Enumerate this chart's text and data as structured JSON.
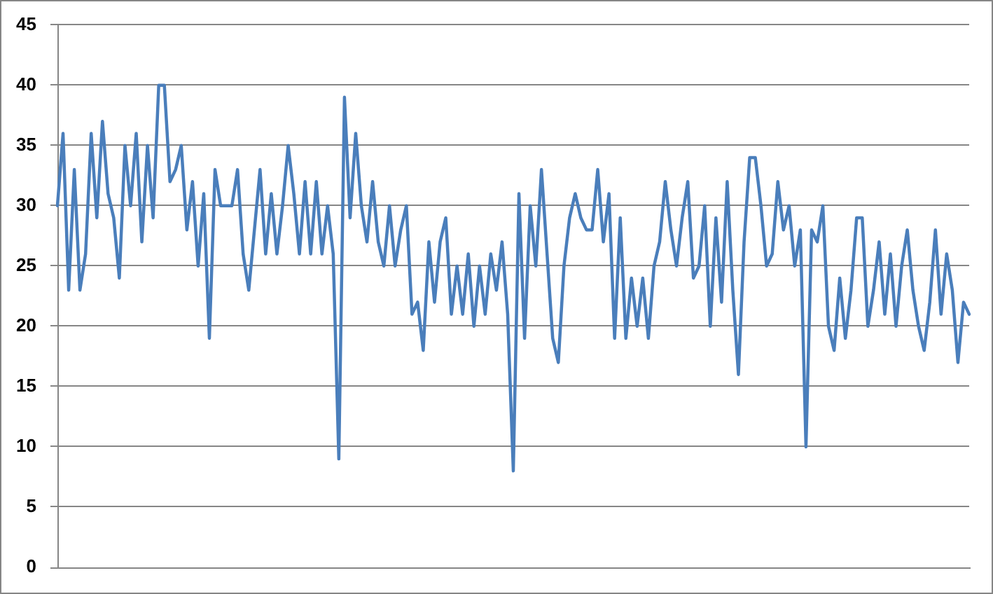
{
  "chart_data": {
    "type": "line",
    "categories": [
      null,
      null,
      null,
      null,
      null,
      null,
      null,
      null,
      null,
      null,
      null,
      null,
      null,
      null,
      null,
      null,
      null,
      null,
      null,
      null,
      null,
      null,
      null,
      null,
      null,
      null,
      null,
      null,
      null,
      null,
      null,
      null,
      null,
      null,
      null,
      null,
      null,
      null,
      null,
      null,
      null,
      null,
      null,
      null,
      null,
      null,
      null,
      null,
      null,
      null,
      null,
      null,
      null,
      null,
      null,
      null,
      null,
      null,
      null,
      null,
      null,
      null,
      null,
      null,
      null,
      null,
      null,
      null,
      null,
      null,
      null,
      null,
      null,
      null,
      null,
      null,
      null,
      null,
      null,
      null,
      null,
      null,
      null,
      null,
      null,
      null,
      null,
      null,
      null,
      null,
      null,
      null,
      null,
      null,
      null,
      null,
      null,
      null,
      null,
      null,
      null,
      null,
      null,
      null,
      null,
      null,
      null,
      null,
      null,
      null,
      null,
      null,
      null,
      null,
      null,
      null,
      null,
      null,
      null,
      null,
      null,
      null,
      null,
      null,
      null,
      null,
      null,
      null,
      null,
      null,
      null,
      null,
      null,
      null,
      null,
      null,
      null,
      null,
      null,
      null,
      null,
      null,
      null,
      null,
      null,
      null,
      null,
      null,
      null,
      null,
      null,
      null,
      null,
      null,
      null,
      null,
      null,
      null,
      null,
      null,
      null,
      null,
      null
    ],
    "series": [
      {
        "color": "#4a7ebb",
        "values": [
          30,
          36,
          23,
          33,
          23,
          26,
          36,
          29,
          37,
          31,
          29,
          24,
          35,
          30,
          36,
          27,
          35,
          29,
          40,
          40,
          32,
          33,
          35,
          28,
          32,
          25,
          31,
          19,
          33,
          30,
          30,
          30,
          33,
          26,
          23,
          28,
          33,
          26,
          31,
          26,
          30,
          35,
          31,
          26,
          32,
          26,
          32,
          26,
          30,
          26,
          9,
          39,
          29,
          36,
          30,
          27,
          32,
          27,
          25,
          30,
          25,
          28,
          30,
          21,
          22,
          18,
          27,
          22,
          27,
          29,
          21,
          25,
          21,
          26,
          20,
          25,
          21,
          26,
          23,
          27,
          21,
          8,
          31,
          19,
          30,
          25,
          33,
          26,
          19,
          17,
          25,
          29,
          31,
          29,
          28,
          28,
          33,
          27,
          31,
          19,
          29,
          19,
          24,
          20,
          24,
          19,
          25,
          27,
          32,
          28,
          25,
          29,
          32,
          24,
          25,
          30,
          20,
          29,
          22,
          32,
          23,
          16,
          27,
          34,
          34,
          30,
          25,
          26,
          32,
          28,
          30,
          25,
          28,
          10,
          28,
          27,
          30,
          20,
          18,
          24,
          19,
          23,
          29,
          29,
          20,
          23,
          27,
          21,
          26,
          20,
          25,
          28,
          23,
          20,
          18,
          22,
          28,
          21,
          26,
          23,
          17,
          22,
          21
        ]
      }
    ],
    "ylim": [
      0,
      45
    ],
    "yticks": [
      0,
      5,
      10,
      15,
      20,
      25,
      30,
      35,
      40,
      45
    ],
    "grid": "y",
    "tick_labels": "y",
    "marker": "none",
    "line_style": "solid"
  }
}
